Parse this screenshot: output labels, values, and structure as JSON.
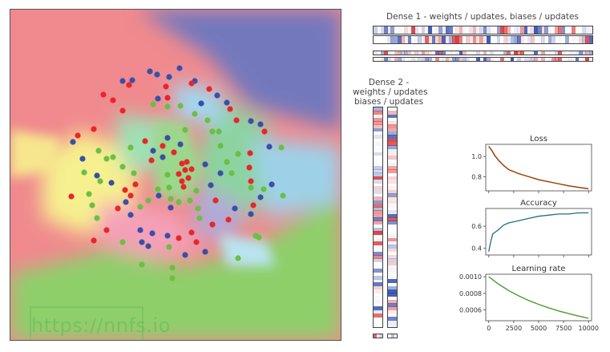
{
  "dense1": {
    "title": "Dense 1 - weights / updates, biases / updates"
  },
  "dense2": {
    "title_line1": "Dense 2 -",
    "title_line2": "weights / updates",
    "title_line3": "biases / updates"
  },
  "watermark": "https://nnfs.io",
  "colors": {
    "red": "#e8262c",
    "blue": "#3a4fa8",
    "green": "#6bbf45"
  },
  "charts": {
    "loss": {
      "title": "Loss",
      "yticks": [
        "1.0",
        "0.8"
      ],
      "yticks_values": [
        1.0,
        0.8
      ],
      "ylim": [
        0.66,
        1.12
      ],
      "series_x": [
        0,
        300,
        600,
        1000,
        1500,
        2000,
        3000,
        4000,
        5000,
        6000,
        7000,
        8000,
        9000,
        10000
      ],
      "series_y": [
        1.1,
        1.06,
        1.01,
        0.96,
        0.91,
        0.87,
        0.83,
        0.8,
        0.77,
        0.75,
        0.73,
        0.71,
        0.695,
        0.68
      ],
      "color": "#a0400b"
    },
    "accuracy": {
      "title": "Accuracy",
      "yticks": [
        "0.6",
        "0.4"
      ],
      "yticks_values": [
        0.6,
        0.4
      ],
      "ylim": [
        0.34,
        0.76
      ],
      "series_x": [
        0,
        200,
        400,
        700,
        1000,
        1500,
        2000,
        2500,
        3000,
        4000,
        5000,
        6000,
        7000,
        8000,
        9000,
        10000
      ],
      "series_y": [
        0.37,
        0.46,
        0.53,
        0.55,
        0.57,
        0.61,
        0.63,
        0.64,
        0.65,
        0.67,
        0.69,
        0.7,
        0.71,
        0.71,
        0.72,
        0.72
      ],
      "color": "#1f6f8b"
    },
    "lr": {
      "title": "Learning rate",
      "yticks": [
        "0.0010",
        "0.0008",
        "0.0006"
      ],
      "yticks_values": [
        0.001,
        0.0008,
        0.0006
      ],
      "ylim": [
        0.00047,
        0.00103
      ],
      "xticks": [
        "0",
        "2500",
        "5000",
        "7500",
        "10000"
      ],
      "xticks_values": [
        0,
        2500,
        5000,
        7500,
        10000
      ],
      "series_x": [
        0,
        1000,
        2000,
        3000,
        4000,
        5000,
        6000,
        7000,
        8000,
        9000,
        10000
      ],
      "series_y": [
        0.001,
        0.000909,
        0.000833,
        0.000769,
        0.000714,
        0.000667,
        0.000625,
        0.000588,
        0.000556,
        0.000526,
        0.0005
      ],
      "color": "#4e9a33"
    }
  }
}
